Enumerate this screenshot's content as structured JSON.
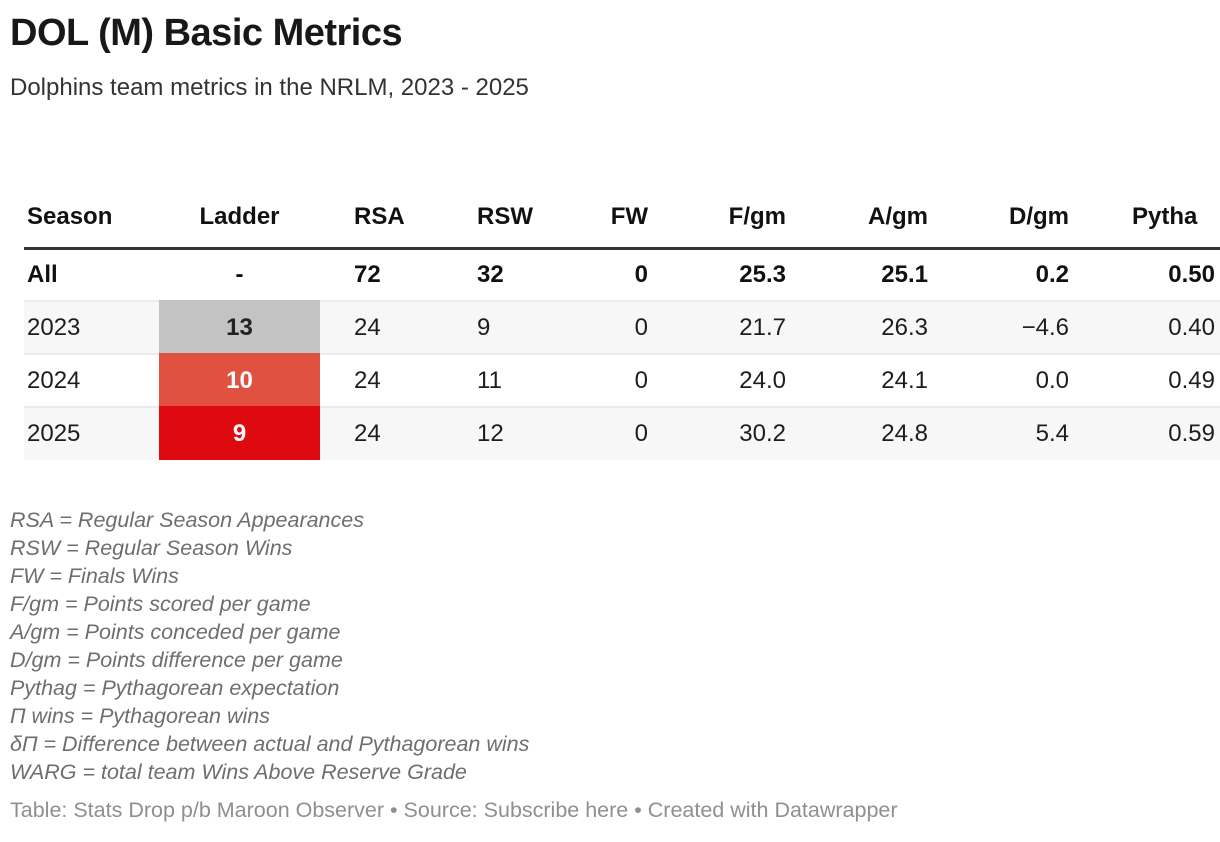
{
  "header": {
    "title": "DOL (M) Basic Metrics",
    "subtitle": "Dolphins team metrics in the NRLM, 2023 - 2025"
  },
  "table": {
    "columns": [
      "Season",
      "Ladder",
      "RSA",
      "RSW",
      "FW",
      "F/gm",
      "A/gm",
      "D/gm",
      "Pytha"
    ],
    "rows": [
      {
        "season": "All",
        "ladder": "-",
        "ladder_bg": null,
        "ladder_color": null,
        "bold": true,
        "striped": false,
        "values": [
          "72",
          "32",
          "0",
          "25.3",
          "25.1",
          "0.2",
          "0.50"
        ]
      },
      {
        "season": "2023",
        "ladder": "13",
        "ladder_bg": "#c3c3c3",
        "ladder_color": "#222222",
        "bold": false,
        "striped": true,
        "values": [
          "24",
          "9",
          "0",
          "21.7",
          "26.3",
          "−4.6",
          "0.40"
        ]
      },
      {
        "season": "2024",
        "ladder": "10",
        "ladder_bg": "#e05140",
        "ladder_color": "#ffffff",
        "bold": false,
        "striped": false,
        "values": [
          "24",
          "11",
          "0",
          "24.0",
          "24.1",
          "0.0",
          "0.49"
        ]
      },
      {
        "season": "2025",
        "ladder": "9",
        "ladder_bg": "#de0a10",
        "ladder_color": "#ffffff",
        "bold": false,
        "striped": true,
        "values": [
          "24",
          "12",
          "0",
          "30.2",
          "24.8",
          "5.4",
          "0.59"
        ]
      }
    ]
  },
  "colors": {
    "ladder_gray": "#c3c3c3",
    "ladder_mid_red": "#e05140",
    "ladder_strong_red": "#de0a10",
    "zebra_row": "#f7f7f7",
    "row_divider": "#ebebeb",
    "header_rule": "#333333"
  },
  "footnotes": [
    "RSA = Regular Season Appearances",
    "RSW = Regular Season Wins",
    "FW = Finals Wins",
    "F/gm = Points scored per game",
    "A/gm = Points conceded per game",
    "D/gm = Points difference per game",
    "Pythag = Pythagorean expectation",
    "Π wins = Pythagorean wins",
    "δΠ = Difference between actual and Pythagorean wins",
    "WARG = total team Wins Above Reserve Grade"
  ],
  "footer": {
    "table_credit": "Table: Stats Drop p/b Maroon Observer",
    "separator": "•",
    "source_label": "Source:",
    "source_link_text": "Subscribe here",
    "created_with": "Created with",
    "attribution_link_text": "Datawrapper"
  }
}
